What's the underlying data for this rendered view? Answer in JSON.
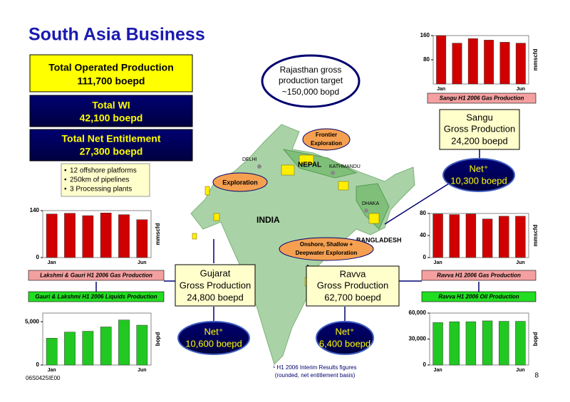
{
  "title": "South Asia Business",
  "summary": [
    {
      "label": "Total Operated Production",
      "value": "111,700 boepd"
    },
    {
      "label": "Total WI",
      "value": "42,100 boepd"
    },
    {
      "label": "Total Net Entitlement",
      "value": "27,300 boepd"
    }
  ],
  "bullets": [
    "12 offshore platforms",
    "250km of pipelines",
    "3 Processing plants"
  ],
  "callouts": {
    "rajasthan": [
      "Rajasthan gross",
      "production target",
      "~150,000 bopd"
    ],
    "frontier": [
      "Frontier",
      "Exploration"
    ],
    "exploration": "Exploration",
    "onshore": [
      "Onshore, Shallow +",
      "Deepwater Exploration"
    ]
  },
  "map_labels": {
    "delhi": "DELHI",
    "nepal": "NEPAL",
    "kathmandu": "KATHMANDU",
    "india": "INDIA",
    "dhaka": "DHAKA",
    "bangladesh": "BANGLADESH"
  },
  "assets": [
    {
      "name": "Sangu",
      "gross": "Gross Production",
      "gross_value": "24,200 boepd",
      "net": "Net⁺",
      "net_value": "10,300 boepd"
    },
    {
      "name": "Gujarat",
      "gross": "Gross Production",
      "gross_value": "24,800 boepd",
      "net": "Net⁺",
      "net_value": "10,600 boepd"
    },
    {
      "name": "Ravva",
      "gross": "Gross Production",
      "gross_value": "62,700 boepd",
      "net": "Net⁺",
      "net_value": "6,400 boepd"
    }
  ],
  "footnote": [
    "¹ H1 2006 Interim Results figures",
    "(rounded, net entitlement basis)"
  ],
  "page_number": "8",
  "doc_code": "06S0425IE00",
  "chart_data": [
    {
      "type": "bar",
      "title": "Sangu H1 2006 Gas Production",
      "y_label": "mmscfd",
      "categories": [
        "Jan",
        null,
        null,
        null,
        null,
        "Jun"
      ],
      "values": [
        160,
        135,
        150,
        145,
        138,
        135
      ],
      "color": "#d00000",
      "ylim": [
        0,
        160
      ],
      "yticks": [
        80,
        160
      ]
    },
    {
      "type": "bar",
      "title": "Lakshmi & Gauri H1 2006 Gas Production",
      "y_label": "mmscfd",
      "categories": [
        "Jan",
        null,
        null,
        null,
        null,
        "Jun"
      ],
      "values": [
        130,
        132,
        125,
        133,
        128,
        113
      ],
      "color": "#d00000",
      "ylim": [
        0,
        140
      ],
      "yticks": [
        0,
        140
      ]
    },
    {
      "type": "bar",
      "title": "Ravva H1 2006 Gas Production",
      "y_label": "mmscfd",
      "categories": [
        "Jan",
        null,
        null,
        null,
        null,
        "Jun"
      ],
      "values": [
        79,
        78,
        79,
        70,
        75,
        75
      ],
      "color": "#d00000",
      "ylim": [
        0,
        80
      ],
      "yticks": [
        0,
        40,
        80
      ]
    },
    {
      "type": "bar",
      "title": "Gauri  & Lakshmi H1 2006 Liquids Production",
      "y_label": "bopd",
      "categories": [
        "Jan",
        null,
        null,
        null,
        null,
        "Jun"
      ],
      "values": [
        3100,
        3800,
        3900,
        4400,
        5200,
        4600
      ],
      "color": "#22c822",
      "ylim": [
        0,
        6000
      ],
      "yticks": [
        0,
        {
          "value": 5000,
          "label": "5,000"
        }
      ]
    },
    {
      "type": "bar",
      "title": "Ravva H1 2006 Oil Production",
      "y_label": "bopd",
      "categories": [
        "Jan",
        null,
        null,
        null,
        null,
        "Jun"
      ],
      "values": [
        49000,
        50000,
        50000,
        51000,
        50500,
        50500
      ],
      "color": "#22c822",
      "ylim": [
        0,
        60000
      ],
      "yticks": [
        0,
        {
          "value": 30000,
          "label": "30,000"
        },
        {
          "value": 60000,
          "label": "60,000"
        }
      ]
    }
  ]
}
